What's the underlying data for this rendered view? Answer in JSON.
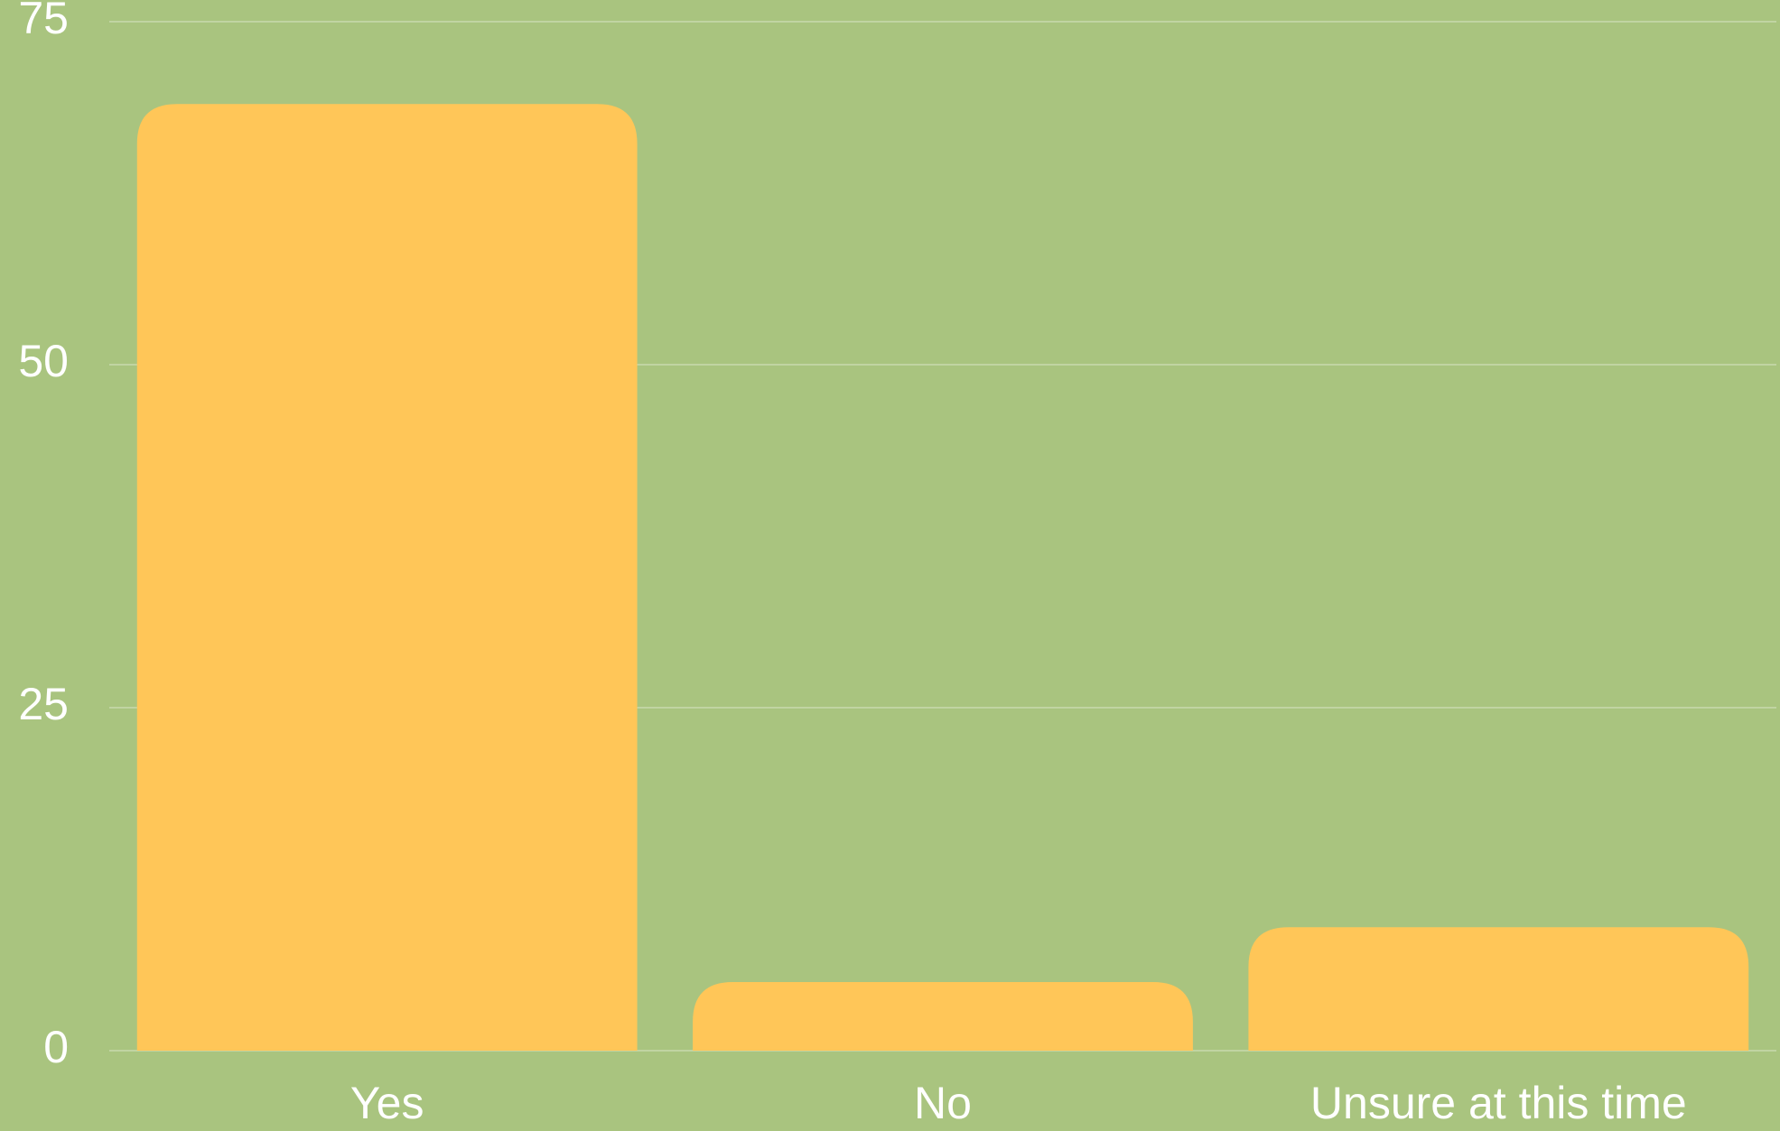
{
  "chart_data": {
    "type": "bar",
    "categories": [
      "Yes",
      "No",
      "Unsure at this time"
    ],
    "values": [
      69,
      5,
      9
    ],
    "color": "#ffc658",
    "ylim": [
      0,
      75
    ],
    "yticks": [
      0,
      25,
      50,
      75
    ],
    "grid": true
  }
}
